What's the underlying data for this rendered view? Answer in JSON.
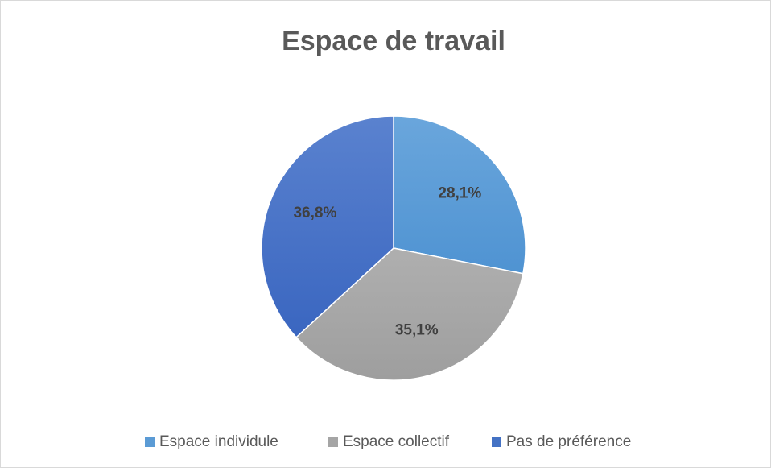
{
  "chart_data": {
    "type": "pie",
    "title": "Espace de travail",
    "categories": [
      "Espace individule",
      "Espace collectif",
      "Pas de préférence"
    ],
    "values": [
      28.1,
      35.1,
      36.8
    ],
    "value_labels": [
      "28,1%",
      "35,1%",
      "36,8%"
    ],
    "colors": [
      "#5b9bd5",
      "#a5a5a5",
      "#4472c4"
    ],
    "legend": "bottom"
  }
}
